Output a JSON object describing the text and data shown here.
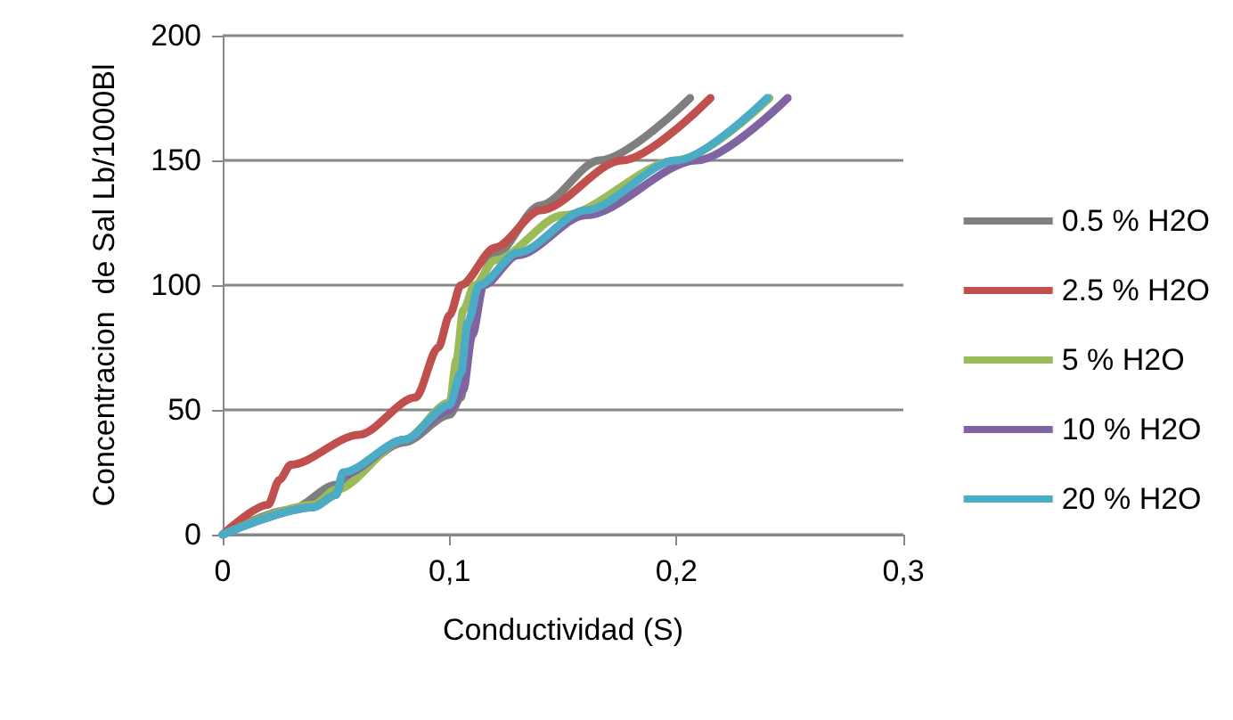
{
  "chart_data": {
    "type": "line",
    "xlabel": "Conductividad (S)",
    "ylabel": "Concentracion  de Sal Lb/1000Bl",
    "xlim": [
      0,
      0.3
    ],
    "xticks": [
      0,
      {
        "value": 0.1,
        "label": "0,1"
      },
      {
        "value": 0.2,
        "label": "0,2"
      },
      {
        "value": 0.3,
        "label": "0,3"
      }
    ],
    "ylim": [
      0,
      200
    ],
    "yticks": [
      0,
      50,
      100,
      150,
      200
    ],
    "grid": "y",
    "legend": "right",
    "marker": "none",
    "line_style": "solid",
    "series": [
      {
        "name": "0.5 % H2O",
        "color": "#7f7f7f",
        "x": [
          0,
          0.03,
          0.05,
          0.08,
          0.1,
          0.105,
          0.108,
          0.112,
          0.12,
          0.14,
          0.166,
          0.206
        ],
        "values": [
          0,
          10,
          20,
          37,
          48,
          55,
          75,
          100,
          112,
          132,
          150,
          175
        ]
      },
      {
        "name": "2.5 % H2O",
        "color": "#c0504d",
        "x": [
          0,
          0.02,
          0.025,
          0.03,
          0.06,
          0.085,
          0.095,
          0.1,
          0.105,
          0.12,
          0.14,
          0.176,
          0.215
        ],
        "values": [
          0,
          12,
          22,
          28,
          40,
          55,
          75,
          88,
          100,
          115,
          130,
          150,
          175
        ]
      },
      {
        "name": "5 % H2O",
        "color": "#9bbb59",
        "x": [
          0,
          0.04,
          0.05,
          0.08,
          0.1,
          0.103,
          0.106,
          0.111,
          0.12,
          0.15,
          0.2,
          0.241
        ],
        "values": [
          0,
          12,
          18,
          38,
          53,
          70,
          90,
          100,
          110,
          128,
          150,
          175
        ]
      },
      {
        "name": "10 % H2O",
        "color": "#8064a2",
        "x": [
          0,
          0.04,
          0.05,
          0.053,
          0.08,
          0.1,
          0.106,
          0.11,
          0.115,
          0.13,
          0.16,
          0.209,
          0.249
        ],
        "values": [
          0,
          11,
          16,
          24,
          38,
          50,
          58,
          80,
          100,
          112,
          128,
          150,
          175
        ]
      },
      {
        "name": "20 % H2O",
        "color": "#4bacc6",
        "x": [
          0,
          0.04,
          0.05,
          0.053,
          0.08,
          0.1,
          0.105,
          0.108,
          0.113,
          0.13,
          0.16,
          0.2,
          0.24
        ],
        "values": [
          0,
          11,
          16,
          25,
          38,
          52,
          65,
          85,
          100,
          113,
          130,
          150,
          175
        ]
      }
    ]
  }
}
